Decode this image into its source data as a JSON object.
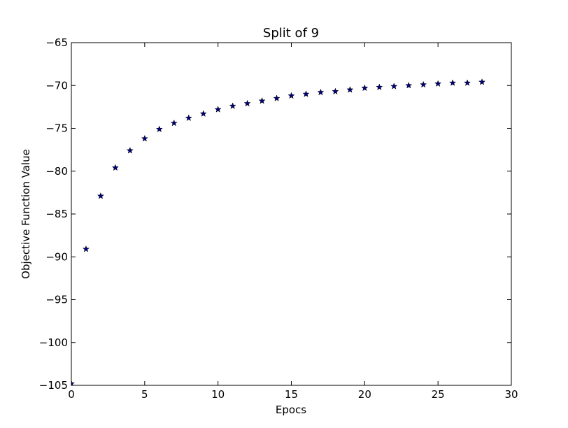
{
  "chart_data": {
    "type": "scatter",
    "title": "Split of 9",
    "xlabel": "Epocs",
    "ylabel": "Objective Function Value",
    "xlim": [
      0,
      30
    ],
    "ylim": [
      -105,
      -65
    ],
    "xticks": [
      0,
      5,
      10,
      15,
      20,
      25,
      30
    ],
    "yticks": [
      -105,
      -100,
      -95,
      -90,
      -85,
      -80,
      -75,
      -70,
      -65
    ],
    "xtick_labels": [
      "0",
      "5",
      "10",
      "15",
      "20",
      "25",
      "30"
    ],
    "ytick_labels": [
      "−105",
      "−100",
      "−95",
      "−90",
      "−85",
      "−80",
      "−75",
      "−70",
      "−65"
    ],
    "grid": false,
    "marker": "star",
    "marker_color": "#00007f",
    "series": [
      {
        "x": [
          0,
          1,
          2,
          3,
          4,
          5,
          6,
          7,
          8,
          9,
          10,
          11,
          12,
          13,
          14,
          15,
          16,
          17,
          18,
          19,
          20,
          21,
          22,
          23,
          24,
          25,
          26,
          27,
          28
        ],
        "y": [
          -104.8,
          -89.1,
          -82.9,
          -79.6,
          -77.6,
          -76.2,
          -75.1,
          -74.4,
          -73.8,
          -73.3,
          -72.8,
          -72.4,
          -72.1,
          -71.8,
          -71.5,
          -71.2,
          -71.0,
          -70.8,
          -70.7,
          -70.5,
          -70.3,
          -70.2,
          -70.1,
          -70.0,
          -69.9,
          -69.8,
          -69.7,
          -69.7,
          -69.6
        ]
      }
    ]
  }
}
